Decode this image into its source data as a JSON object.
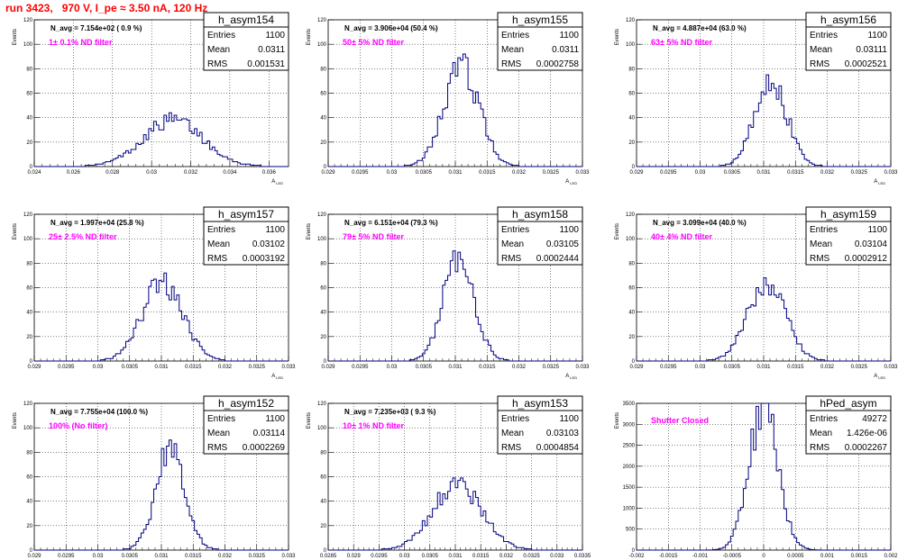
{
  "title": "run 3423,   970 V, I_pe ≈ 3.50 nA, 120 Hz",
  "stats_labels": {
    "entries": "Entries",
    "mean": "Mean",
    "rms": "RMS"
  },
  "chart_data": [
    {
      "type": "histogram",
      "name": "h_asym154",
      "ylabel": "Events",
      "xlabel": "A",
      "x_sub": "LED",
      "navg_text": "N_avg = 7.154e+02 ( 0.9 %)",
      "filter_text": "1± 0.1% ND filter",
      "entries": "1100",
      "mean": "0.0311",
      "rms": "0.001531",
      "xlim": [
        0.024,
        0.037
      ],
      "ylim": [
        0,
        120
      ],
      "xticks": [
        0.024,
        0.026,
        0.028,
        0.03,
        0.032,
        0.034,
        0.036
      ],
      "xtick_labels": [
        "0.024",
        "0.026",
        "0.028",
        "0.03",
        "0.032",
        "0.034",
        "0.036"
      ],
      "yticks": [
        0,
        20,
        40,
        60,
        80,
        100,
        120
      ],
      "mu": 0.0311,
      "sigma": 0.001531,
      "peak": 38
    },
    {
      "type": "histogram",
      "name": "h_asym155",
      "ylabel": "Events",
      "xlabel": "A",
      "x_sub": "LED",
      "navg_text": "N_avg = 3.906e+04 (50.4 %)",
      "filter_text": "50± 5% ND filter",
      "entries": "1100",
      "mean": "0.0311",
      "rms": "0.0002758",
      "xlim": [
        0.029,
        0.033
      ],
      "ylim": [
        0,
        120
      ],
      "xticks": [
        0.029,
        0.0295,
        0.03,
        0.0305,
        0.031,
        0.0315,
        0.032,
        0.0325,
        0.033
      ],
      "xtick_labels": [
        "0.029",
        "0.0295",
        "0.03",
        "0.0305",
        "0.031",
        "0.0315",
        "0.032",
        "0.0325",
        "0.033"
      ],
      "yticks": [
        0,
        20,
        40,
        60,
        80,
        100,
        120
      ],
      "mu": 0.0311,
      "sigma": 0.0002758,
      "peak": 82
    },
    {
      "type": "histogram",
      "name": "h_asym156",
      "ylabel": "Events",
      "xlabel": "A",
      "x_sub": "LED",
      "navg_text": "N_avg = 4.887e+04 (63.0 %)",
      "filter_text": "63± 5% ND filter",
      "entries": "1100",
      "mean": "0.03111",
      "rms": "0.0002521",
      "xlim": [
        0.029,
        0.033
      ],
      "ylim": [
        0,
        120
      ],
      "xticks": [
        0.029,
        0.0295,
        0.03,
        0.0305,
        0.031,
        0.0315,
        0.032,
        0.0325,
        0.033
      ],
      "xtick_labels": [
        "0.029",
        "0.0295",
        "0.03",
        "0.0305",
        "0.031",
        "0.0315",
        "0.032",
        "0.0325",
        "0.033"
      ],
      "yticks": [
        0,
        20,
        40,
        60,
        80,
        100,
        120
      ],
      "mu": 0.03111,
      "sigma": 0.0002521,
      "peak": 72
    },
    {
      "type": "histogram",
      "name": "h_asym157",
      "ylabel": "Events",
      "xlabel": "A",
      "x_sub": "LED",
      "navg_text": "N_avg = 1.997e+04 (25.8 %)",
      "filter_text": "25± 2.5% ND filter",
      "entries": "1100",
      "mean": "0.03102",
      "rms": "0.0003192",
      "xlim": [
        0.029,
        0.033
      ],
      "ylim": [
        0,
        120
      ],
      "xticks": [
        0.029,
        0.0295,
        0.03,
        0.0305,
        0.031,
        0.0315,
        0.032,
        0.0325,
        0.033
      ],
      "xtick_labels": [
        "0.029",
        "0.0295",
        "0.03",
        "0.0305",
        "0.031",
        "0.0315",
        "0.032",
        "0.0325",
        "0.033"
      ],
      "yticks": [
        0,
        20,
        40,
        60,
        80,
        100,
        120
      ],
      "mu": 0.03102,
      "sigma": 0.0003192,
      "peak": 64
    },
    {
      "type": "histogram",
      "name": "h_asym158",
      "ylabel": "Events",
      "xlabel": "A",
      "x_sub": "LED",
      "navg_text": "N_avg = 6.151e+04 (79.3 %)",
      "filter_text": "79± 5% ND filter",
      "entries": "1100",
      "mean": "0.03105",
      "rms": "0.0002444",
      "xlim": [
        0.029,
        0.033
      ],
      "ylim": [
        0,
        120
      ],
      "xticks": [
        0.029,
        0.0295,
        0.03,
        0.0305,
        0.031,
        0.0315,
        0.032,
        0.0325,
        0.033
      ],
      "xtick_labels": [
        "0.029",
        "0.0295",
        "0.03",
        "0.0305",
        "0.031",
        "0.0315",
        "0.032",
        "0.0325",
        "0.033"
      ],
      "yticks": [
        0,
        20,
        40,
        60,
        80,
        100,
        120
      ],
      "mu": 0.03105,
      "sigma": 0.0002444,
      "peak": 82
    },
    {
      "type": "histogram",
      "name": "h_asym159",
      "ylabel": "Events",
      "xlabel": "A",
      "x_sub": "LED",
      "navg_text": "N_avg = 3.099e+04 (40.0 %)",
      "filter_text": "40± 4% ND filter",
      "entries": "1100",
      "mean": "0.03104",
      "rms": "0.0002912",
      "xlim": [
        0.029,
        0.033
      ],
      "ylim": [
        0,
        120
      ],
      "xticks": [
        0.029,
        0.0295,
        0.03,
        0.0305,
        0.031,
        0.0315,
        0.032,
        0.0325,
        0.033
      ],
      "xtick_labels": [
        "0.029",
        "0.0295",
        "0.03",
        "0.0305",
        "0.031",
        "0.0315",
        "0.032",
        "0.0325",
        "0.033"
      ],
      "yticks": [
        0,
        20,
        40,
        60,
        80,
        100,
        120
      ],
      "mu": 0.03104,
      "sigma": 0.0002912,
      "peak": 66
    },
    {
      "type": "histogram",
      "name": "h_asym152",
      "ylabel": "Events",
      "xlabel": "A",
      "x_sub": "LED",
      "navg_text": "N_avg = 7.755e+04 (100.0 %)",
      "filter_text": "100% (No filter)",
      "entries": "1100",
      "mean": "0.03114",
      "rms": "0.0002269",
      "xlim": [
        0.029,
        0.033
      ],
      "ylim": [
        0,
        120
      ],
      "xticks": [
        0.029,
        0.0295,
        0.03,
        0.0305,
        0.031,
        0.0315,
        0.032,
        0.0325,
        0.033
      ],
      "xtick_labels": [
        "0.029",
        "0.0295",
        "0.03",
        "0.0305",
        "0.031",
        "0.0315",
        "0.032",
        "0.0325",
        "0.033"
      ],
      "yticks": [
        0,
        20,
        40,
        60,
        80,
        100,
        120
      ],
      "mu": 0.03114,
      "sigma": 0.0002269,
      "peak": 82
    },
    {
      "type": "histogram",
      "name": "h_asym153",
      "ylabel": "Events",
      "xlabel": "A",
      "x_sub": "LED",
      "navg_text": "N_avg = 7.235e+03 ( 9.3 %)",
      "filter_text": "10± 1% ND filter",
      "entries": "1100",
      "mean": "0.03103",
      "rms": "0.0004854",
      "xlim": [
        0.0285,
        0.0335
      ],
      "ylim": [
        0,
        120
      ],
      "xticks": [
        0.0285,
        0.029,
        0.0295,
        0.03,
        0.0305,
        0.031,
        0.0315,
        0.032,
        0.0325,
        0.033,
        0.0335
      ],
      "xtick_labels": [
        "0.0285",
        "0.029",
        "0.0295",
        "0.03",
        "0.0305",
        "0.031",
        "0.0315",
        "0.032",
        "0.0325",
        "0.033",
        "0.0335"
      ],
      "yticks": [
        0,
        20,
        40,
        60,
        80,
        100,
        120
      ],
      "mu": 0.03103,
      "sigma": 0.0004854,
      "peak": 53
    },
    {
      "type": "histogram",
      "name": "hPed_asym",
      "ylabel": "Events",
      "xlabel": "A",
      "x_sub": "LED",
      "navg_text": "",
      "filter_text": "Shutter Closed",
      "entries": "49272",
      "mean": "1.426e-06",
      "rms": "0.0002267",
      "xlim": [
        -0.002,
        0.002
      ],
      "ylim": [
        0,
        3500
      ],
      "xticks": [
        -0.002,
        -0.0015,
        -0.001,
        -0.0005,
        0,
        0.0005,
        0.001,
        0.0015,
        0.002
      ],
      "xtick_labels": [
        "-0.002",
        "-0.0015",
        "-0.001",
        "-0.0005",
        "0",
        "0.0005",
        "0.001",
        "0.0015",
        "0.002"
      ],
      "yticks": [
        0,
        500,
        1000,
        1500,
        2000,
        2500,
        3000,
        3500
      ],
      "mu": 1.4e-06,
      "sigma": 0.0002267,
      "peak": 3420
    }
  ]
}
